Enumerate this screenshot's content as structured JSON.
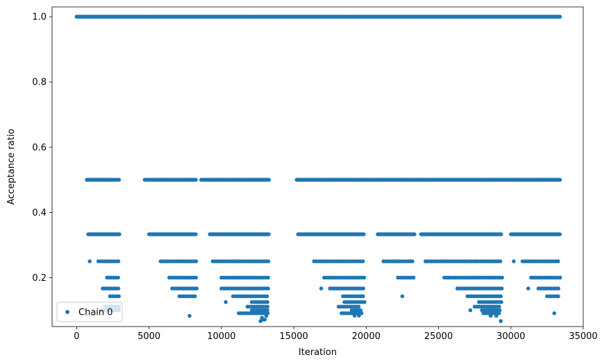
{
  "chart_data": {
    "type": "scatter",
    "xlabel": "Iteration",
    "ylabel": "Acceptance ratio",
    "xlim": [
      -1700,
      35000
    ],
    "ylim": [
      0.05,
      1.03
    ],
    "grid": false,
    "legend_position": "bottom-left",
    "xticks": [
      0,
      5000,
      10000,
      15000,
      20000,
      25000,
      30000,
      35000
    ],
    "xtick_labels": [
      "0",
      "5000",
      "10000",
      "15000",
      "20000",
      "25000",
      "30000",
      "35000"
    ],
    "yticks": [
      0.2,
      0.4,
      0.6,
      0.8,
      1.0
    ],
    "ytick_labels": [
      "0.2",
      "0.4",
      "0.6",
      "0.8",
      "1.0"
    ],
    "series": [
      {
        "name": "Chain 0",
        "color": "#1f77b4",
        "marker": "circle",
        "bands": [
          {
            "y": 1.0,
            "ranges": [
              [
                0,
                33400
              ]
            ]
          },
          {
            "y": 0.5,
            "ranges": [
              [
                700,
                3000
              ],
              [
                4700,
                8300
              ],
              [
                8600,
                13300
              ],
              [
                15200,
                33400
              ]
            ]
          },
          {
            "y": 0.333,
            "ranges": [
              [
                800,
                3000
              ],
              [
                5000,
                8300
              ],
              [
                9200,
                13300
              ],
              [
                15300,
                19900
              ],
              [
                20800,
                23400
              ],
              [
                23800,
                29400
              ],
              [
                30000,
                33400
              ]
            ]
          },
          {
            "y": 0.25,
            "ranges": [
              [
                1500,
                3000
              ],
              [
                5800,
                8300
              ],
              [
                9400,
                13300
              ],
              [
                16400,
                19900
              ],
              [
                21200,
                23300
              ],
              [
                24200,
                29400
              ],
              [
                30800,
                33400
              ]
            ]
          },
          {
            "y": 0.2,
            "ranges": [
              [
                2100,
                3000
              ],
              [
                6400,
                8300
              ],
              [
                10000,
                13300
              ],
              [
                17100,
                19900
              ],
              [
                22200,
                23400
              ],
              [
                25400,
                29400
              ],
              [
                31400,
                33400
              ]
            ]
          },
          {
            "y": 0.1667,
            "ranges": [
              [
                1800,
                3000
              ],
              [
                6600,
                8300
              ],
              [
                10000,
                13300
              ],
              [
                17500,
                19900
              ],
              [
                26300,
                29400
              ],
              [
                31900,
                33400
              ]
            ]
          },
          {
            "y": 0.1429,
            "ranges": [
              [
                2300,
                3000
              ],
              [
                7100,
                8300
              ],
              [
                11000,
                13300
              ],
              [
                18400,
                19900
              ],
              [
                27000,
                29400
              ],
              [
                32500,
                33400
              ]
            ]
          },
          {
            "y": 0.125,
            "ranges": [
              [
                12100,
                13300
              ],
              [
                18500,
                19900
              ],
              [
                27800,
                29400
              ]
            ]
          },
          {
            "y": 0.1111,
            "ranges": [
              [
                2000,
                3000
              ],
              [
                11800,
                13300
              ],
              [
                18100,
                19600
              ],
              [
                27500,
                29300
              ]
            ]
          },
          {
            "y": 0.1,
            "ranges": [
              [
                1700,
                3000
              ],
              [
                12100,
                13300
              ],
              [
                19000,
                19700
              ],
              [
                28000,
                29300
              ]
            ]
          },
          {
            "y": 0.0909,
            "ranges": [
              [
                11200,
                13200
              ],
              [
                18300,
                19800
              ],
              [
                28100,
                29200
              ]
            ]
          }
        ],
        "scattered_points": [
          [
            900,
            0.25
          ],
          [
            2700,
            0.11
          ],
          [
            7800,
            0.083
          ],
          [
            10300,
            0.125
          ],
          [
            10800,
            0.143
          ],
          [
            12700,
            0.0667
          ],
          [
            12900,
            0.0714
          ],
          [
            13000,
            0.0714
          ],
          [
            12800,
            0.077
          ],
          [
            13100,
            0.083
          ],
          [
            16900,
            0.1667
          ],
          [
            19200,
            0.0833
          ],
          [
            19500,
            0.0833
          ],
          [
            22500,
            0.143
          ],
          [
            24100,
            0.25
          ],
          [
            27200,
            0.1
          ],
          [
            28600,
            0.083
          ],
          [
            29000,
            0.083
          ],
          [
            29300,
            0.0667
          ],
          [
            30200,
            0.25
          ],
          [
            31200,
            0.1667
          ],
          [
            33000,
            0.0909
          ]
        ]
      }
    ]
  }
}
